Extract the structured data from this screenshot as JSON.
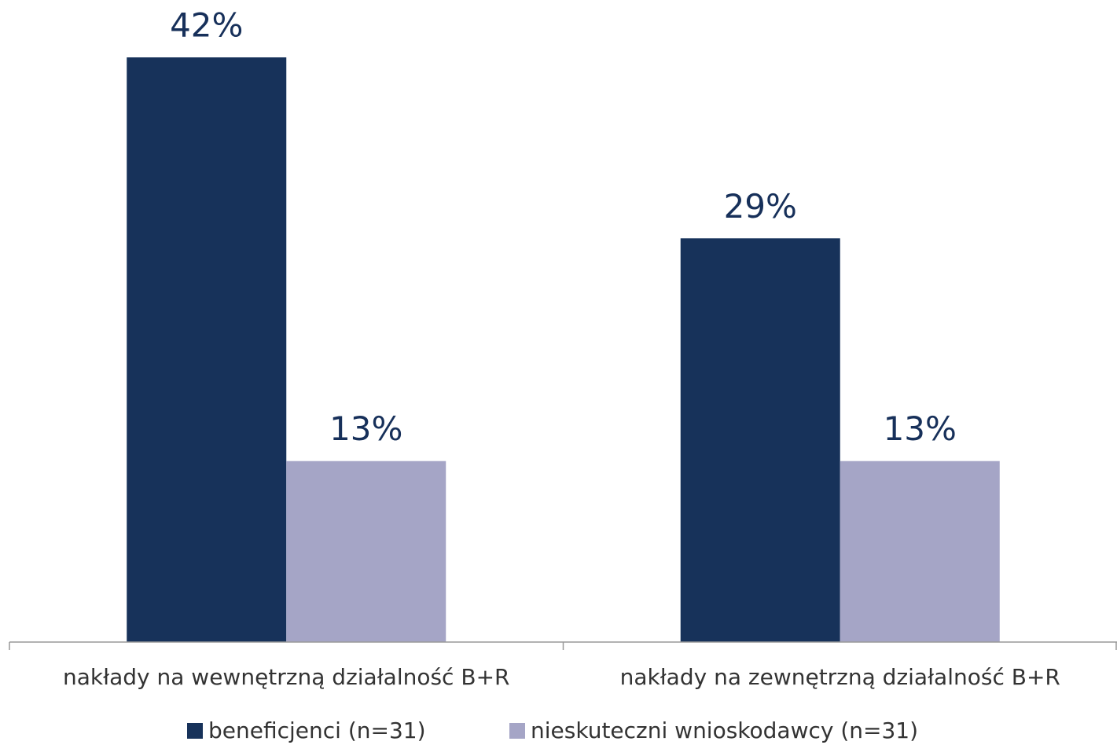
{
  "chart_data": {
    "type": "bar",
    "categories": [
      "nakłady na wewnętrzną działalność B+R",
      "nakłady na zewnętrzną działalność B+R"
    ],
    "series": [
      {
        "name": "beneficjenci (n=31)",
        "color": "#17325a",
        "values": [
          42,
          29
        ],
        "value_labels": [
          "42%",
          "29%"
        ]
      },
      {
        "name": "nieskuteczni wnioskodawcy (n=31)",
        "color": "#a5a5c6",
        "values": [
          13,
          13
        ],
        "value_labels": [
          "13%",
          "13%"
        ]
      }
    ],
    "legend": "bottom"
  }
}
